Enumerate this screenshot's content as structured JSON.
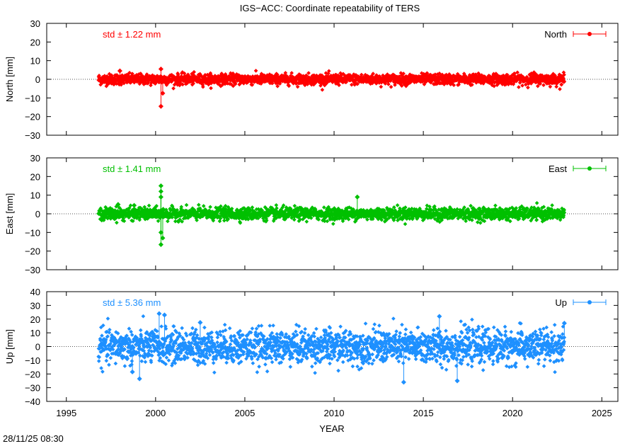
{
  "title": "IGS−ACC: Coordinate repeatability of TERS",
  "timestamp": "28/11/25 08:30",
  "chart_data": {
    "type": "scatter",
    "title": "IGS−ACC: Coordinate repeatability of TERS",
    "xlabel": "YEAR",
    "xlim": [
      1993.9,
      2025.9
    ],
    "x_ticks": [
      1995,
      2000,
      2005,
      2010,
      2015,
      2020,
      2025
    ],
    "x_tick_labels": [
      "1995",
      "2000",
      "2005",
      "2010",
      "2015",
      "2020",
      "2025"
    ],
    "zero_line": "dotted",
    "grid": false,
    "legend_position": "top-right",
    "panels": [
      {
        "name": "North",
        "ylabel": "North [mm]",
        "ylim": [
          -30,
          30
        ],
        "y_ticks": [
          -30,
          -20,
          -10,
          0,
          10,
          20,
          30
        ],
        "y_tick_labels": [
          "−30",
          "−20",
          "−10",
          "0",
          "10",
          "20",
          "30"
        ],
        "color": "#ff0000",
        "std_label": "std ± 1.22 mm",
        "std_mm": 1.22,
        "data_range": [
          1996.8,
          2022.9
        ],
        "outliers": [
          [
            2000.3,
            -14.5
          ],
          [
            2000.4,
            -7.5
          ],
          [
            2000.3,
            5.5
          ],
          [
            1998.0,
            4.5
          ],
          [
            2021.2,
            3.5
          ]
        ]
      },
      {
        "name": "East",
        "ylabel": "East [mm]",
        "ylim": [
          -30,
          30
        ],
        "y_ticks": [
          -30,
          -20,
          -10,
          0,
          10,
          20,
          30
        ],
        "y_tick_labels": [
          "−30",
          "−20",
          "−10",
          "0",
          "10",
          "20",
          "30"
        ],
        "color": "#00c000",
        "std_label": "std ± 1.41 mm",
        "std_mm": 1.41,
        "data_range": [
          1996.8,
          2022.9
        ],
        "outliers": [
          [
            2000.3,
            15.0
          ],
          [
            2000.3,
            12.0
          ],
          [
            2000.3,
            9.0
          ],
          [
            2000.3,
            -16.5
          ],
          [
            2000.4,
            -13.0
          ],
          [
            2000.3,
            -10.0
          ],
          [
            2011.3,
            9.0
          ],
          [
            1997.9,
            5.0
          ],
          [
            1998.8,
            4.5
          ]
        ]
      },
      {
        "name": "Up",
        "ylabel": "Up [mm]",
        "ylim": [
          -40,
          40
        ],
        "y_ticks": [
          -40,
          -30,
          -20,
          -10,
          0,
          10,
          20,
          30,
          40
        ],
        "y_tick_labels": [
          "−40",
          "−30",
          "−20",
          "−10",
          "0",
          "10",
          "20",
          "30",
          "40"
        ],
        "color": "#1e90ff",
        "std_label": "std ± 5.36 mm",
        "std_mm": 5.36,
        "data_range": [
          1996.8,
          2022.9
        ],
        "outliers": [
          [
            2000.2,
            24.0
          ],
          [
            2000.5,
            23.0
          ],
          [
            2015.9,
            22.0
          ],
          [
            2013.9,
            -26.0
          ],
          [
            1999.1,
            -23.5
          ],
          [
            2016.9,
            -25.0
          ],
          [
            1998.7,
            -18.5
          ],
          [
            2002.5,
            17.5
          ],
          [
            2022.9,
            17.0
          ]
        ]
      }
    ]
  }
}
